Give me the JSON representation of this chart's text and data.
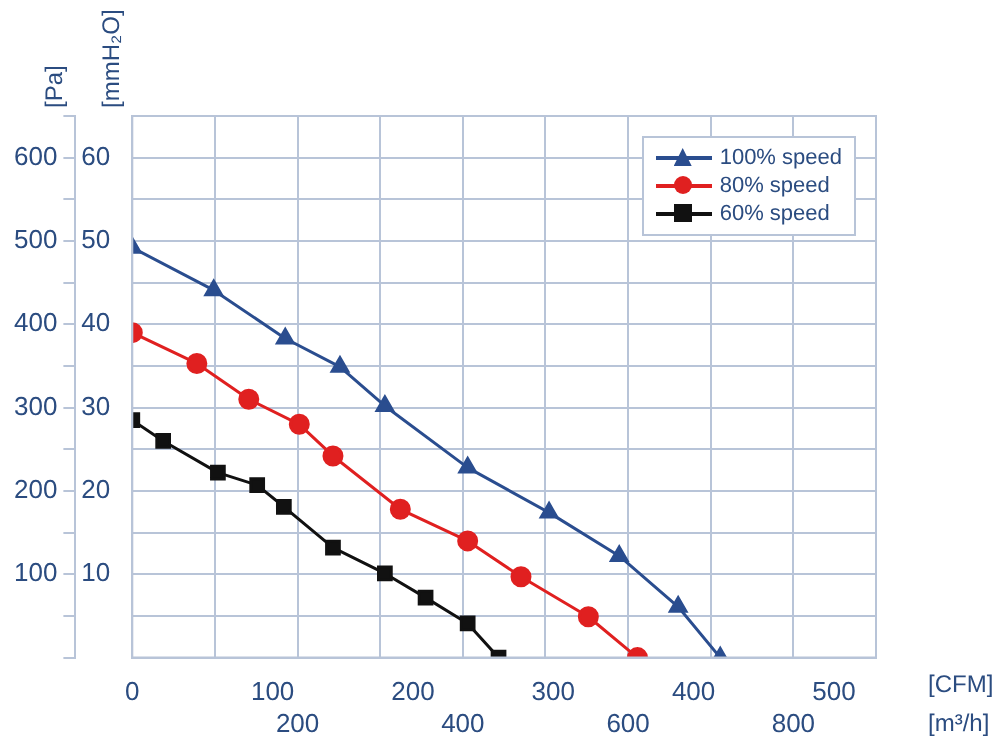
{
  "chart_data": {
    "type": "line",
    "xlabel": "[CFM]",
    "x2label": "[m³/h]",
    "ylabel": "[Pa]",
    "y2label": "[mmH₂O]",
    "xlim": [
      0,
      530
    ],
    "xticks": [
      0,
      100,
      200,
      300,
      400,
      500
    ],
    "x2lim": [
      0,
      900
    ],
    "x2ticks": [
      {
        "value": 100,
        "label": null
      },
      200,
      {
        "value": 300,
        "label": null
      },
      400,
      {
        "value": 500,
        "label": null
      },
      600,
      {
        "value": 700,
        "label": null
      },
      800,
      {
        "value": 900,
        "label": null
      }
    ],
    "ylim": [
      0,
      650
    ],
    "yticks": [
      {
        "value": 0,
        "label": null
      },
      {
        "value": 50,
        "label": null
      },
      100,
      {
        "value": 150,
        "label": null
      },
      200,
      {
        "value": 250,
        "label": null
      },
      300,
      {
        "value": 350,
        "label": null
      },
      400,
      {
        "value": 450,
        "label": null
      },
      500,
      {
        "value": 550,
        "label": null
      },
      600,
      {
        "value": 650,
        "label": null
      }
    ],
    "y2lim": [
      0,
      65
    ],
    "y2ticks": [
      10,
      20,
      30,
      40,
      50,
      60
    ],
    "grid": true,
    "legend": "top right",
    "line_style": "solid",
    "series": [
      {
        "name": "100% speed",
        "color": "#2a4d8f",
        "marker": "triangle",
        "x": [
          0,
          58,
          109,
          148,
          180,
          239,
          297,
          347,
          389,
          419
        ],
        "values": [
          492,
          441,
          383,
          349,
          302,
          228,
          174,
          122,
          61,
          0
        ]
      },
      {
        "name": "80% speed",
        "color": "#e02020",
        "marker": "circle",
        "x": [
          0,
          46,
          83,
          119,
          143,
          191,
          239,
          277,
          325,
          360
        ],
        "values": [
          390,
          353,
          310,
          280,
          242,
          178,
          140,
          97,
          49,
          0
        ]
      },
      {
        "name": "60% speed",
        "color": "#111111",
        "marker": "square",
        "x": [
          0,
          22,
          61,
          89,
          108,
          143,
          180,
          209,
          239,
          261
        ],
        "values": [
          285,
          260,
          222,
          207,
          181,
          132,
          101,
          72,
          41,
          0
        ]
      }
    ]
  }
}
